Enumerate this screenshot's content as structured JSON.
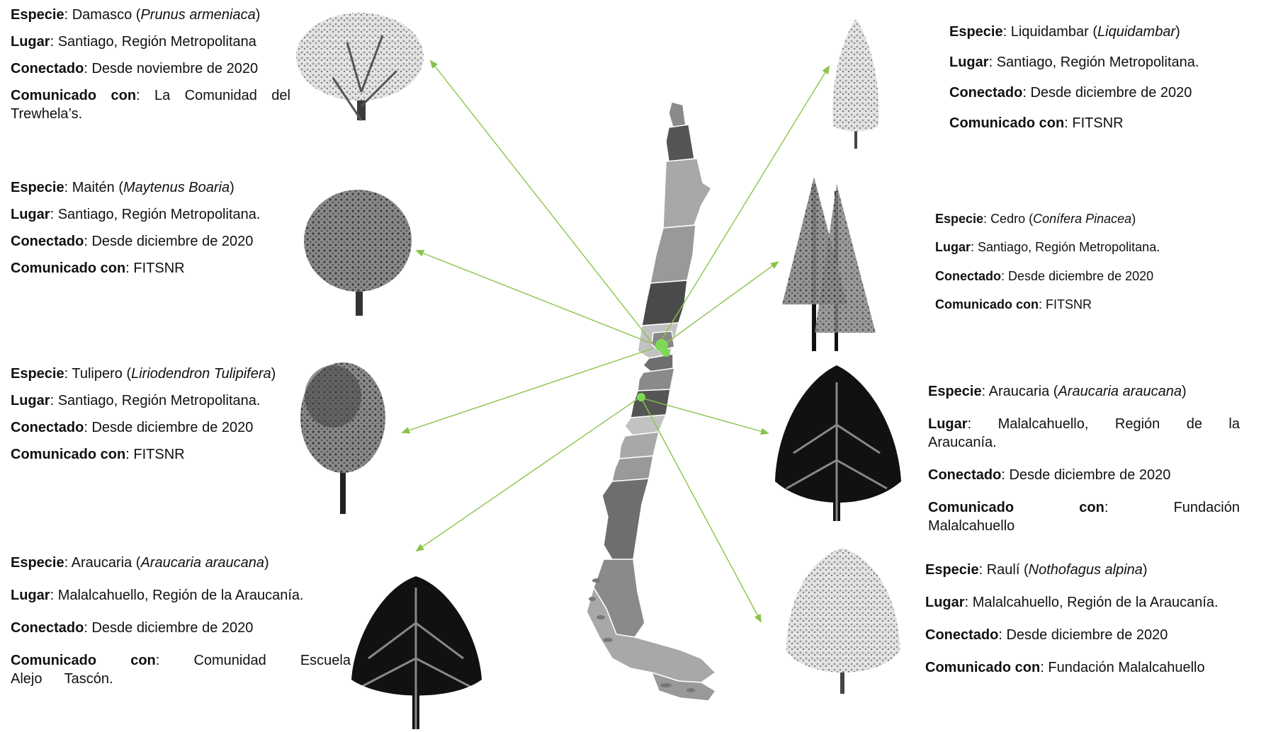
{
  "labels": {
    "species": "Especie",
    "place": "Lugar",
    "connected": "Conectado",
    "communicated": "Comunicado con"
  },
  "trees": [
    {
      "id": "damasco",
      "species_common": "Damasco",
      "species_scientific": "Prunus armeniaca",
      "place": "Santiago, Región Metropolitana",
      "connected": "Desde noviembre de 2020",
      "communicated": "La Comunidad del Trewhela’s."
    },
    {
      "id": "maiten",
      "species_common": "Maitén",
      "species_scientific": "Maytenus Boaria",
      "place": "Santiago, Región Metropolitana.",
      "connected": "Desde diciembre de 2020",
      "communicated": "FITSNR"
    },
    {
      "id": "tulipero",
      "species_common": "Tulipero",
      "species_scientific": "Liriodendron Tulipifera",
      "place": "Santiago, Región Metropolitana.",
      "connected": "Desde diciembre de 2020",
      "communicated": "FITSNR"
    },
    {
      "id": "araucaria-left",
      "species_common": "Araucaria",
      "species_scientific": "Araucaria araucana",
      "place": "Malalcahuello, Región de la Araucanía.",
      "connected": "Desde diciembre de 2020",
      "communicated": "Comunidad Escuela Alejo Tascón."
    },
    {
      "id": "liquidambar",
      "species_common": "Liquidambar",
      "species_scientific": "Liquidambar",
      "place": "Santiago, Región Metropolitana.",
      "connected": "Desde diciembre de 2020",
      "communicated": "FITSNR"
    },
    {
      "id": "cedro",
      "species_common": "Cedro",
      "species_scientific": "Conífera Pinacea",
      "place": "Santiago, Región Metropolitana.",
      "connected": "Desde diciembre de 2020",
      "communicated": "FITSNR"
    },
    {
      "id": "araucaria-right",
      "species_common": "Araucaria",
      "species_scientific": "Araucaria araucana",
      "place": "Malalcahuello, Región de la Araucanía.",
      "connected": "Desde diciembre de 2020",
      "communicated": "Fundación Malalcahuello"
    },
    {
      "id": "rauli",
      "species_common": "Raulí",
      "species_scientific": "Nothofagus alpina",
      "place": "Malalcahuello, Región de la Araucanía.",
      "connected": "Desde diciembre de 2020",
      "communicated": "Fundación Malalcahuello"
    }
  ],
  "colors": {
    "arrow": "#8bc34a",
    "node": "#7ed957",
    "map_regions": [
      "#555555",
      "#8a8a8a",
      "#a8a8a8",
      "#6e6e6e",
      "#c2c2c2",
      "#4a4a4a",
      "#999999"
    ]
  }
}
